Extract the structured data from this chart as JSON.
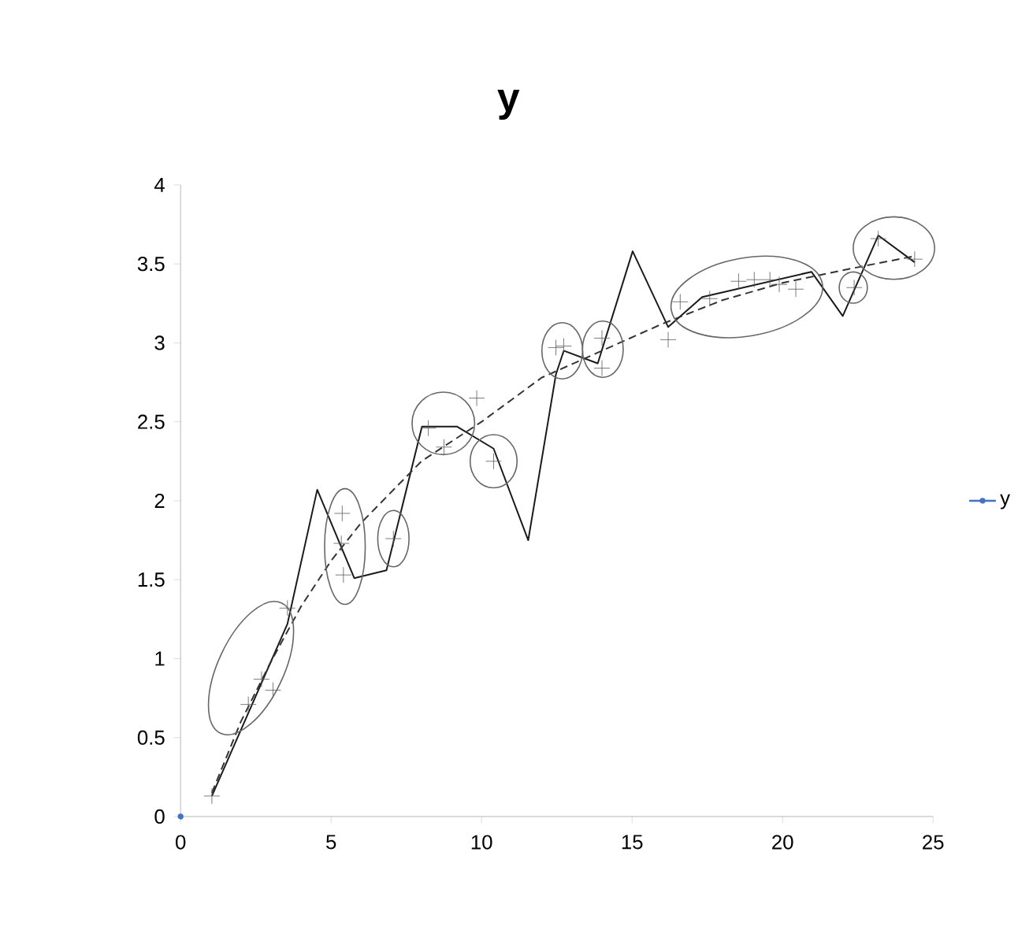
{
  "chart_data": {
    "type": "scatter",
    "title": "y",
    "xlim": [
      0,
      25
    ],
    "xticks": [
      0,
      5,
      10,
      15,
      20,
      25
    ],
    "ylim": [
      0,
      4
    ],
    "yticks": [
      0,
      0.5,
      1,
      1.5,
      2,
      2.5,
      3,
      3.5,
      4
    ],
    "legend": "right",
    "series": [
      {
        "marker": "cross",
        "color": "#595959",
        "x": [
          1.04,
          2.25,
          2.69,
          3.07,
          3.55,
          5.37,
          5.34,
          5.41,
          7.07,
          8.23,
          8.75,
          9.84,
          10.4,
          12.47,
          12.73,
          14.0,
          14.0,
          16.2,
          16.6,
          17.58,
          18.54,
          19.06,
          19.58,
          19.89,
          20.44,
          22.38,
          23.18,
          24.39
        ],
        "values": [
          0.13,
          0.71,
          0.87,
          0.8,
          1.32,
          1.92,
          1.73,
          1.53,
          1.76,
          2.46,
          2.34,
          2.65,
          2.25,
          2.97,
          2.98,
          3.03,
          2.84,
          3.02,
          3.26,
          3.28,
          3.39,
          3.4,
          3.4,
          3.37,
          3.34,
          3.35,
          3.66,
          3.53
        ]
      },
      {
        "type": "line",
        "marker": "none",
        "line_style": "solid",
        "color": "#1a1a1a",
        "x": [
          1.04,
          3.55,
          4.54,
          5.77,
          6.84,
          8.02,
          9.18,
          10.4,
          11.55,
          12.47,
          12.73,
          13.86,
          15.02,
          16.2,
          17.33,
          20.96,
          22.0,
          23.18,
          24.39
        ],
        "values": [
          0.13,
          1.22,
          2.07,
          1.51,
          1.56,
          2.47,
          2.47,
          2.33,
          1.75,
          2.8,
          2.95,
          2.87,
          3.58,
          3.1,
          3.29,
          3.45,
          3.17,
          3.68,
          3.51
        ]
      },
      {
        "type": "line",
        "marker": "none",
        "line_style": "dashed",
        "color": "#333333",
        "x": [
          1.04,
          2,
          3,
          4,
          5,
          6,
          8,
          10,
          12,
          14,
          16,
          18,
          20,
          22,
          24.4
        ],
        "values": [
          0.15,
          0.6,
          0.98,
          1.33,
          1.62,
          1.86,
          2.25,
          2.5,
          2.78,
          2.95,
          3.12,
          3.27,
          3.38,
          3.46,
          3.55
        ]
      },
      {
        "name": "y",
        "type": "line",
        "marker": "circle",
        "line_style": "solid",
        "color": "#4472c4",
        "x": [
          0
        ],
        "values": [
          0
        ]
      }
    ]
  }
}
